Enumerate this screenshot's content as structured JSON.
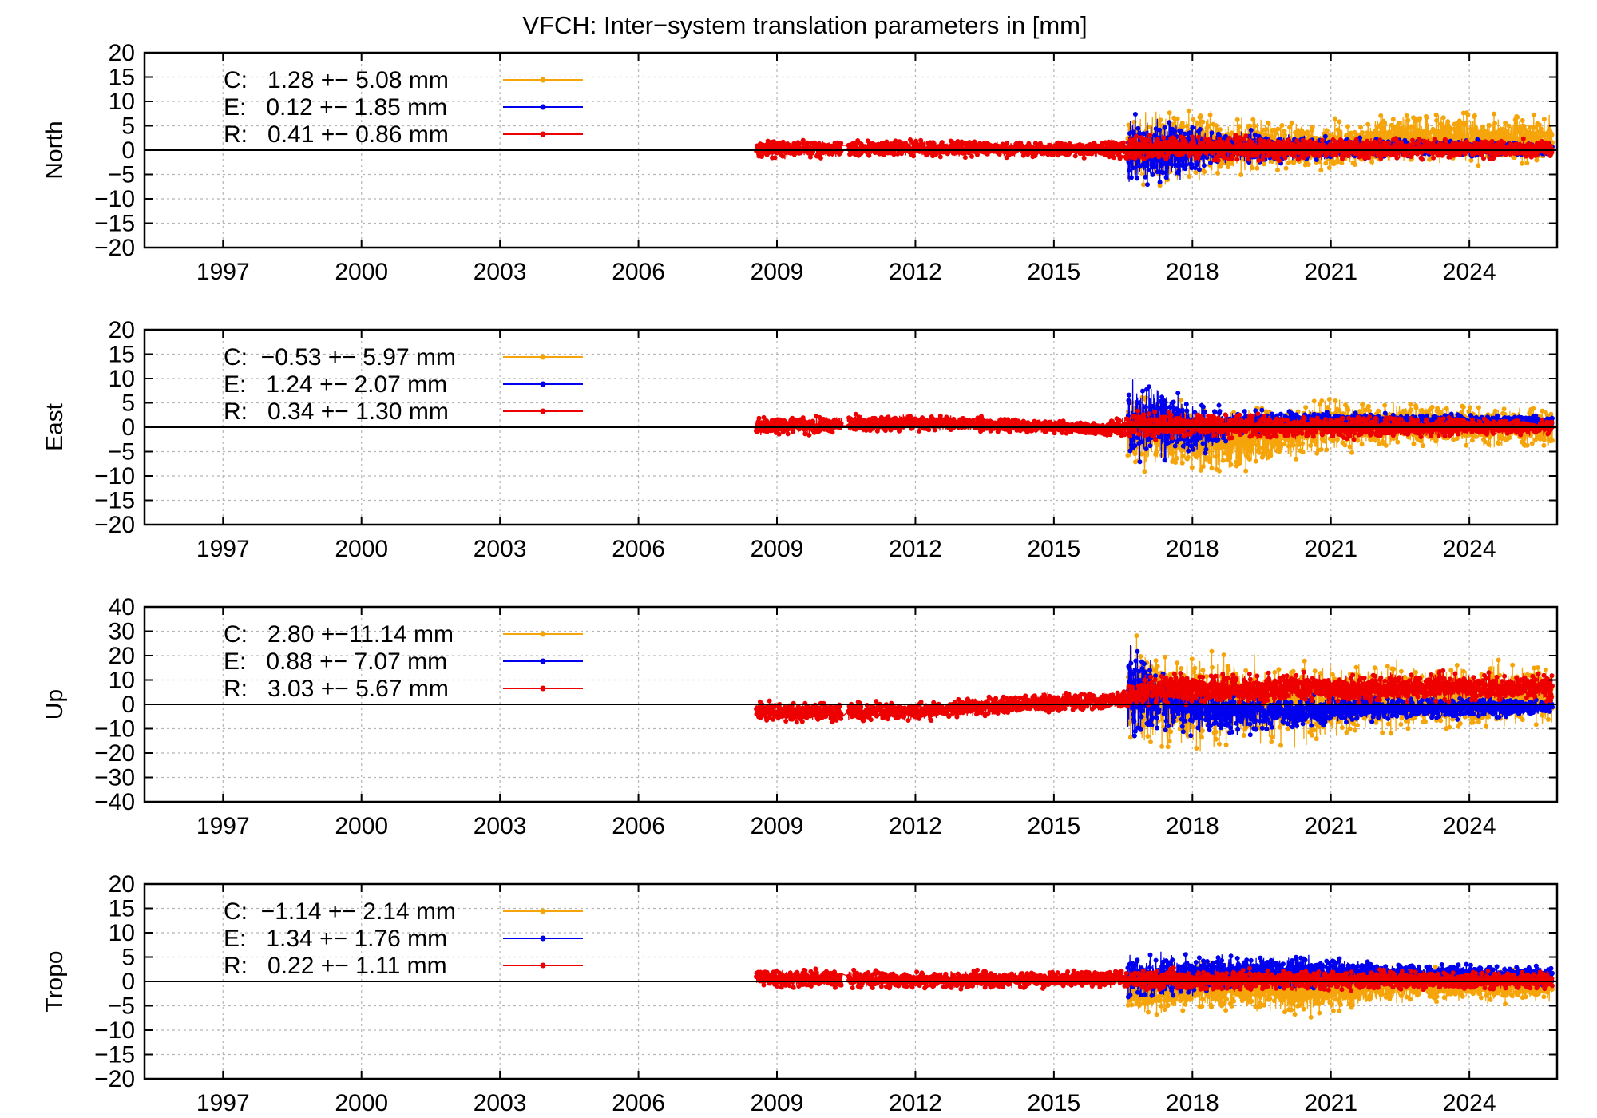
{
  "title": "VFCH: Inter−system translation parameters in [mm]",
  "colors": {
    "C": "#f5a50a",
    "E": "#0000ee",
    "R": "#ee0000"
  },
  "chart_data": [
    {
      "type": "line",
      "ylabel": "North",
      "xlabel": "",
      "xlim": [
        1995.3,
        2025.9
      ],
      "ylim": [
        -20,
        20
      ],
      "xticks": [
        1997,
        2000,
        2003,
        2006,
        2009,
        2012,
        2015,
        2018,
        2021,
        2024
      ],
      "xtick_labels": [
        "1997",
        "2000",
        "2003",
        "2006",
        "2009",
        "2012",
        "2015",
        "2018",
        "2021",
        "2024"
      ],
      "yticks": [
        -20,
        -15,
        -10,
        -5,
        0,
        5,
        10,
        15,
        20
      ],
      "ytick_labels": [
        "−20",
        "−15",
        "−10",
        "−5",
        "0",
        "5",
        "10",
        "15",
        "20"
      ],
      "grid": true,
      "legend_position": "top-left",
      "series": [
        {
          "name": "C",
          "legend": "C:   1.28 +− 5.08 mm",
          "mean": 1.28,
          "std": 5.08,
          "start": 2016.6,
          "end": 2025.8,
          "pattern": [
            {
              "t": 2016.6,
              "lo": -8,
              "hi": 9
            },
            {
              "t": 2017.5,
              "lo": -10,
              "hi": 11
            },
            {
              "t": 2019.0,
              "lo": -6,
              "hi": 8
            },
            {
              "t": 2021.0,
              "lo": -5,
              "hi": 7
            },
            {
              "t": 2022.5,
              "lo": -4,
              "hi": 9
            },
            {
              "t": 2025.8,
              "lo": -4,
              "hi": 8
            }
          ]
        },
        {
          "name": "E",
          "legend": "E:   0.12 +− 1.85 mm",
          "mean": 0.12,
          "std": 1.85,
          "start": 2016.6,
          "end": 2025.8,
          "pattern": [
            {
              "t": 2016.6,
              "lo": -10,
              "hi": 10
            },
            {
              "t": 2017.6,
              "lo": -8,
              "hi": 8
            },
            {
              "t": 2018.5,
              "lo": -4,
              "hi": 5
            },
            {
              "t": 2020.0,
              "lo": -3,
              "hi": 4
            },
            {
              "t": 2022.0,
              "lo": -2,
              "hi": 3
            },
            {
              "t": 2025.8,
              "lo": -1.5,
              "hi": 2
            }
          ]
        },
        {
          "name": "R",
          "legend": "R:   0.41 +− 0.86 mm",
          "mean": 0.41,
          "std": 0.86,
          "start": 2008.55,
          "end": 2025.8,
          "pattern": [
            {
              "t": 2008.55,
              "lo": -2,
              "hi": 2.5
            },
            {
              "t": 2012.0,
              "lo": -1.8,
              "hi": 2.5
            },
            {
              "t": 2016.0,
              "lo": -1.8,
              "hi": 2
            },
            {
              "t": 2017.0,
              "lo": -3,
              "hi": 4
            },
            {
              "t": 2020.0,
              "lo": -2.5,
              "hi": 3
            },
            {
              "t": 2025.8,
              "lo": -2,
              "hi": 2.5
            }
          ]
        }
      ]
    },
    {
      "type": "line",
      "ylabel": "East",
      "xlabel": "",
      "xlim": [
        1995.3,
        2025.9
      ],
      "ylim": [
        -20,
        20
      ],
      "xticks": [
        1997,
        2000,
        2003,
        2006,
        2009,
        2012,
        2015,
        2018,
        2021,
        2024
      ],
      "xtick_labels": [
        "1997",
        "2000",
        "2003",
        "2006",
        "2009",
        "2012",
        "2015",
        "2018",
        "2021",
        "2024"
      ],
      "yticks": [
        -20,
        -15,
        -10,
        -5,
        0,
        5,
        10,
        15,
        20
      ],
      "ytick_labels": [
        "−20",
        "−15",
        "−10",
        "−5",
        "0",
        "5",
        "10",
        "15",
        "20"
      ],
      "grid": true,
      "legend_position": "top-left",
      "series": [
        {
          "name": "C",
          "legend": "C:  −0.53 +− 5.97 mm",
          "mean": -0.53,
          "std": 5.97,
          "start": 2016.6,
          "end": 2025.8,
          "pattern": [
            {
              "t": 2016.6,
              "lo": -10,
              "hi": 10
            },
            {
              "t": 2018.0,
              "lo": -12,
              "hi": 6
            },
            {
              "t": 2019.5,
              "lo": -10,
              "hi": 5
            },
            {
              "t": 2021.0,
              "lo": -6,
              "hi": 7
            },
            {
              "t": 2022.5,
              "lo": -5,
              "hi": 6
            },
            {
              "t": 2025.8,
              "lo": -5,
              "hi": 5
            }
          ]
        },
        {
          "name": "E",
          "legend": "E:   1.24 +− 2.07 mm",
          "mean": 1.24,
          "std": 2.07,
          "start": 2016.6,
          "end": 2025.8,
          "pattern": [
            {
              "t": 2016.6,
              "lo": -8,
              "hi": 11
            },
            {
              "t": 2017.5,
              "lo": -8,
              "hi": 9
            },
            {
              "t": 2018.4,
              "lo": -7,
              "hi": 6
            },
            {
              "t": 2019.0,
              "lo": -2,
              "hi": 4
            },
            {
              "t": 2021.0,
              "lo": -1,
              "hi": 3.5
            },
            {
              "t": 2025.8,
              "lo": 0,
              "hi": 2.5
            }
          ]
        },
        {
          "name": "R",
          "legend": "R:   0.34 +− 1.30 mm",
          "mean": 0.34,
          "std": 1.3,
          "start": 2008.55,
          "end": 2025.8,
          "pattern": [
            {
              "t": 2008.55,
              "lo": -2.5,
              "hi": 2.5
            },
            {
              "t": 2012.0,
              "lo": -1,
              "hi": 3
            },
            {
              "t": 2016.0,
              "lo": -2,
              "hi": 1.5
            },
            {
              "t": 2017.0,
              "lo": -3,
              "hi": 4
            },
            {
              "t": 2020.0,
              "lo": -3,
              "hi": 3
            },
            {
              "t": 2025.8,
              "lo": -2,
              "hi": 2
            }
          ]
        }
      ]
    },
    {
      "type": "line",
      "ylabel": "Up",
      "xlabel": "",
      "xlim": [
        1995.3,
        2025.9
      ],
      "ylim": [
        -40,
        40
      ],
      "xticks": [
        1997,
        2000,
        2003,
        2006,
        2009,
        2012,
        2015,
        2018,
        2021,
        2024
      ],
      "xtick_labels": [
        "1997",
        "2000",
        "2003",
        "2006",
        "2009",
        "2012",
        "2015",
        "2018",
        "2021",
        "2024"
      ],
      "yticks": [
        -40,
        -30,
        -20,
        -10,
        0,
        10,
        20,
        30,
        40
      ],
      "ytick_labels": [
        "−40",
        "−30",
        "−20",
        "−10",
        "0",
        "10",
        "20",
        "30",
        "40"
      ],
      "grid": true,
      "legend_position": "top-left",
      "series": [
        {
          "name": "C",
          "legend": "C:   2.80 +−11.14 mm",
          "mean": 2.8,
          "std": 11.14,
          "start": 2016.6,
          "end": 2025.8,
          "pattern": [
            {
              "t": 2016.6,
              "lo": -20,
              "hi": 30
            },
            {
              "t": 2018.0,
              "lo": -22,
              "hi": 25
            },
            {
              "t": 2020.0,
              "lo": -20,
              "hi": 20
            },
            {
              "t": 2022.0,
              "lo": -15,
              "hi": 20
            },
            {
              "t": 2025.8,
              "lo": -12,
              "hi": 20
            }
          ]
        },
        {
          "name": "E",
          "legend": "E:   0.88 +− 7.07 mm",
          "mean": 0.88,
          "std": 7.07,
          "start": 2016.6,
          "end": 2025.8,
          "pattern": [
            {
              "t": 2016.6,
              "lo": -20,
              "hi": 30
            },
            {
              "t": 2017.3,
              "lo": -15,
              "hi": 20
            },
            {
              "t": 2018.5,
              "lo": -15,
              "hi": 8
            },
            {
              "t": 2020.0,
              "lo": -12,
              "hi": 5
            },
            {
              "t": 2022.0,
              "lo": -8,
              "hi": 5
            },
            {
              "t": 2025.8,
              "lo": -5,
              "hi": 3
            }
          ]
        },
        {
          "name": "R",
          "legend": "R:   3.03 +− 5.67 mm",
          "mean": 3.03,
          "std": 5.67,
          "start": 2008.55,
          "end": 2025.8,
          "pattern": [
            {
              "t": 2008.55,
              "lo": -8,
              "hi": 2
            },
            {
              "t": 2012.0,
              "lo": -8,
              "hi": 2
            },
            {
              "t": 2014.0,
              "lo": -5,
              "hi": 5
            },
            {
              "t": 2016.4,
              "lo": -3,
              "hi": 6
            },
            {
              "t": 2017.0,
              "lo": -2,
              "hi": 14
            },
            {
              "t": 2020.0,
              "lo": -1,
              "hi": 14
            },
            {
              "t": 2025.8,
              "lo": 0,
              "hi": 14
            }
          ]
        }
      ]
    },
    {
      "type": "line",
      "ylabel": "Tropo",
      "xlabel": "",
      "xlim": [
        1995.3,
        2025.9
      ],
      "ylim": [
        -20,
        20
      ],
      "xticks": [
        1997,
        2000,
        2003,
        2006,
        2009,
        2012,
        2015,
        2018,
        2021,
        2024
      ],
      "xtick_labels": [
        "1997",
        "2000",
        "2003",
        "2006",
        "2009",
        "2012",
        "2015",
        "2018",
        "2021",
        "2024"
      ],
      "yticks": [
        -20,
        -15,
        -10,
        -5,
        0,
        5,
        10,
        15,
        20
      ],
      "ytick_labels": [
        "−20",
        "−15",
        "−10",
        "−5",
        "0",
        "5",
        "10",
        "15",
        "20"
      ],
      "grid": true,
      "legend_position": "top-left",
      "series": [
        {
          "name": "C",
          "legend": "C:  −1.14 +− 2.14 mm",
          "mean": -1.14,
          "std": 2.14,
          "start": 2016.6,
          "end": 2025.8,
          "pattern": [
            {
              "t": 2016.6,
              "lo": -8,
              "hi": 4
            },
            {
              "t": 2018.5,
              "lo": -7,
              "hi": 5
            },
            {
              "t": 2020.5,
              "lo": -8,
              "hi": 3
            },
            {
              "t": 2022.5,
              "lo": -5,
              "hi": 4
            },
            {
              "t": 2025.8,
              "lo": -5,
              "hi": 3
            }
          ]
        },
        {
          "name": "E",
          "legend": "E:   1.34 +− 1.76 mm",
          "mean": 1.34,
          "std": 1.76,
          "start": 2016.6,
          "end": 2025.8,
          "pattern": [
            {
              "t": 2016.6,
              "lo": -5,
              "hi": 7
            },
            {
              "t": 2018.5,
              "lo": -3,
              "hi": 6
            },
            {
              "t": 2020.5,
              "lo": -2,
              "hi": 6
            },
            {
              "t": 2022.5,
              "lo": -1,
              "hi": 4
            },
            {
              "t": 2025.8,
              "lo": -1,
              "hi": 3.5
            }
          ]
        },
        {
          "name": "R",
          "legend": "R:   0.22 +− 1.11 mm",
          "mean": 0.22,
          "std": 1.11,
          "start": 2008.55,
          "end": 2025.8,
          "pattern": [
            {
              "t": 2008.55,
              "lo": -1.5,
              "hi": 3
            },
            {
              "t": 2012.0,
              "lo": -2,
              "hi": 2.5
            },
            {
              "t": 2016.0,
              "lo": -1.5,
              "hi": 2.5
            },
            {
              "t": 2017.0,
              "lo": -2.5,
              "hi": 3
            },
            {
              "t": 2025.8,
              "lo": -2,
              "hi": 2.5
            }
          ]
        }
      ]
    }
  ]
}
